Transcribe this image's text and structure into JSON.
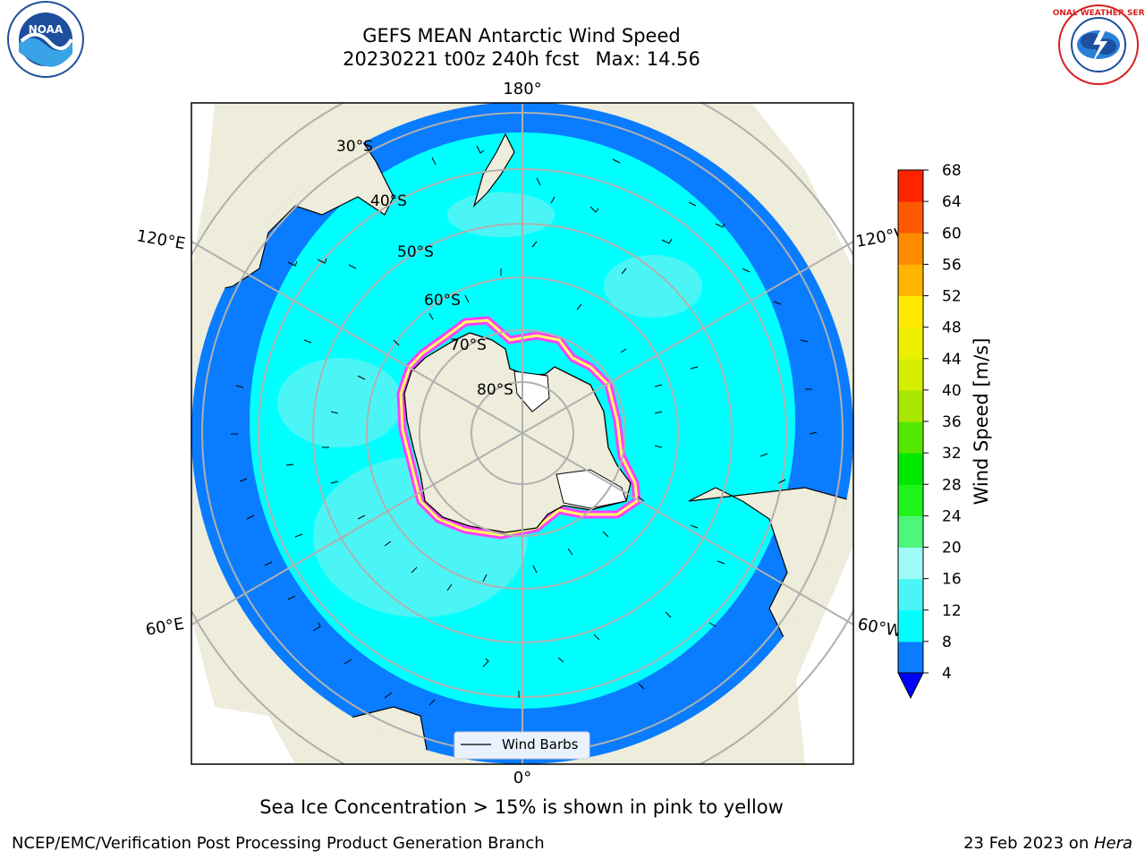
{
  "title": {
    "line1": "GEFS MEAN Antarctic Wind Speed",
    "run": "20230221 t00z 240h fcst",
    "max": "Max: 14.56"
  },
  "logos": {
    "left": "noaa-logo",
    "left_text": "NOAA",
    "right": "nws-logo",
    "right_text": "NATIONAL WEATHER SERVICE"
  },
  "map": {
    "projection": "south-polar-stereographic",
    "longitude_labels": {
      "top": "180°",
      "bottom": "0°",
      "upper_left": "120°E",
      "upper_right": "120°W",
      "lower_left": "60°E",
      "lower_right": "60°W"
    },
    "latitude_labels": [
      "30°S",
      "40°S",
      "50°S",
      "60°S",
      "70°S",
      "80°S"
    ],
    "legend_label": "Wind Barbs",
    "colors": {
      "land": "#eeecdb",
      "ocean_4_8": "#0a7cff",
      "ocean_8_12": "#00ffff",
      "ocean_12_16": "#4cf5f5",
      "sea_ice_edge": "#ff40ff",
      "sea_ice_inner": "#ffff60",
      "gridlines": "#b0b0b0"
    }
  },
  "colorbar": {
    "label": "Wind Speed [m/s]",
    "ticks": [
      "4",
      "8",
      "12",
      "16",
      "20",
      "24",
      "28",
      "32",
      "36",
      "40",
      "44",
      "48",
      "52",
      "56",
      "60",
      "64",
      "68"
    ],
    "colors": [
      "#0a7cff",
      "#00ffff",
      "#4cf5f5",
      "#9efbf7",
      "#4cf77a",
      "#1ff31a",
      "#00e800",
      "#55e600",
      "#a8e800",
      "#d4f000",
      "#ecf000",
      "#ffea00",
      "#ffb400",
      "#ff8c00",
      "#ff5a00",
      "#ff2400"
    ],
    "under_color": "#0000ff"
  },
  "caption": "Sea Ice Concentration > 15% is shown in pink to yellow",
  "footer": {
    "left": "NCEP/EMC/Verification Post Processing Product Generation Branch",
    "date": "23 Feb 2023 on ",
    "machine": "Hera"
  }
}
